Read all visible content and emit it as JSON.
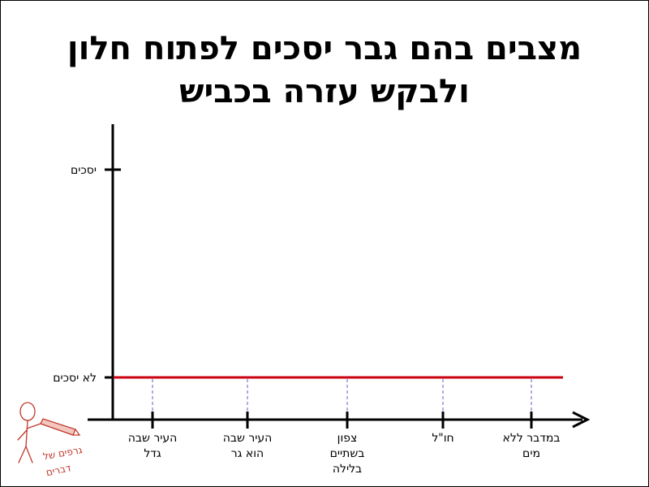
{
  "chart_data": {
    "type": "line",
    "title": "מצבים בהם גבר יסכים לפתוח חלון ולבקש עזרה בכביש",
    "xlabel": "",
    "ylabel": "",
    "categories": [
      "העיר שבה גדל",
      "העיר שבה הוא גר",
      "צפון בשתיים בלילה",
      "חו\"ל",
      "במדבר ללא מים"
    ],
    "y_levels": [
      "לא יסכים",
      "יסכים"
    ],
    "series": [
      {
        "values": [
          0,
          0,
          0,
          0,
          0
        ],
        "color": "#cc0010"
      }
    ],
    "grid": false
  },
  "logo": {
    "text_line1": "גרפים של",
    "text_line2": "דברים"
  },
  "colors": {
    "line": "#cc0010",
    "guide": "#6a5acd",
    "axis": "#000000"
  }
}
